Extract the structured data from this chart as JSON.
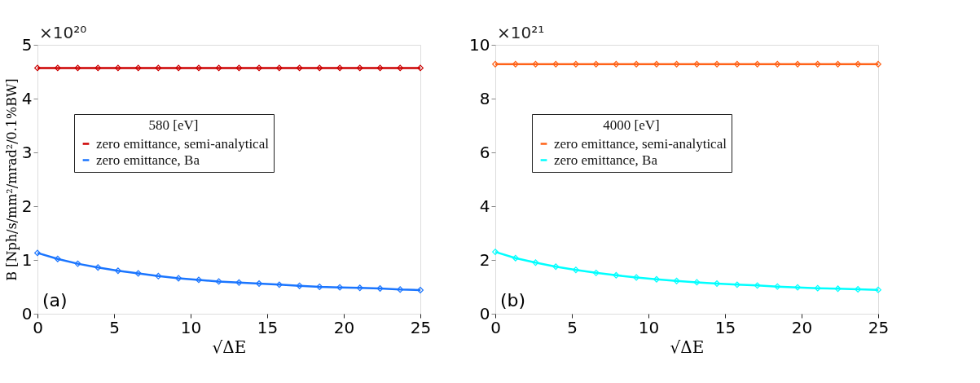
{
  "chart_data": [
    {
      "type": "line",
      "xlabel": "√ΔE",
      "ylabel": "B [Nph/s/mm²/mrad²/0.1%BW]",
      "legend_title": "580 [eV]",
      "legend": "center",
      "annotations": [
        "×10²⁰",
        "(a)"
      ],
      "x": [
        0,
        1.32,
        2.63,
        3.95,
        5.26,
        6.58,
        7.89,
        9.21,
        10.53,
        11.84,
        13.16,
        14.47,
        15.79,
        17.11,
        18.42,
        19.74,
        21.05,
        22.37,
        23.68,
        25
      ],
      "xlim": [
        0,
        25
      ],
      "xticks": [
        0,
        5,
        10,
        15,
        20,
        25
      ],
      "ylim": [
        0,
        5
      ],
      "yticks": [
        0,
        1,
        2,
        3,
        4,
        5
      ],
      "grid": false,
      "marker": "diamond",
      "line_style": "solid",
      "series": [
        {
          "name": "zero emittance, semi-analytical",
          "color": "#cc0000",
          "values": [
            4.57,
            4.57,
            4.57,
            4.57,
            4.57,
            4.57,
            4.57,
            4.57,
            4.57,
            4.57,
            4.57,
            4.57,
            4.57,
            4.57,
            4.57,
            4.57,
            4.57,
            4.57,
            4.57,
            4.57
          ]
        },
        {
          "name": "zero emittance, Ba",
          "color": "#1a75ff",
          "values": [
            1.13,
            1.02,
            0.93,
            0.86,
            0.8,
            0.75,
            0.7,
            0.66,
            0.63,
            0.6,
            0.58,
            0.56,
            0.54,
            0.52,
            0.5,
            0.49,
            0.48,
            0.47,
            0.45,
            0.44
          ]
        }
      ]
    },
    {
      "type": "line",
      "xlabel": "√ΔE",
      "legend_title": "4000 [eV]",
      "legend": "center",
      "annotations": [
        "×10²¹",
        "(b)"
      ],
      "x": [
        0,
        1.32,
        2.63,
        3.95,
        5.26,
        6.58,
        7.89,
        9.21,
        10.53,
        11.84,
        13.16,
        14.47,
        15.79,
        17.11,
        18.42,
        19.74,
        21.05,
        22.37,
        23.68,
        25
      ],
      "xlim": [
        0,
        25
      ],
      "xticks": [
        0,
        5,
        10,
        15,
        20,
        25
      ],
      "ylim": [
        0,
        10
      ],
      "yticks": [
        0,
        2,
        4,
        6,
        8,
        10
      ],
      "grid": false,
      "marker": "diamond",
      "line_style": "solid",
      "series": [
        {
          "name": "zero emittance, semi-analytical",
          "color": "#ff6319",
          "values": [
            9.28,
            9.28,
            9.28,
            9.28,
            9.28,
            9.28,
            9.28,
            9.28,
            9.28,
            9.28,
            9.28,
            9.28,
            9.28,
            9.28,
            9.28,
            9.28,
            9.28,
            9.28,
            9.28,
            9.28
          ]
        },
        {
          "name": "zero emittance, Ba",
          "color": "#00ffff",
          "values": [
            2.3,
            2.07,
            1.9,
            1.75,
            1.63,
            1.52,
            1.43,
            1.35,
            1.28,
            1.22,
            1.17,
            1.12,
            1.08,
            1.05,
            1.01,
            0.98,
            0.95,
            0.93,
            0.91,
            0.89
          ]
        }
      ]
    }
  ]
}
